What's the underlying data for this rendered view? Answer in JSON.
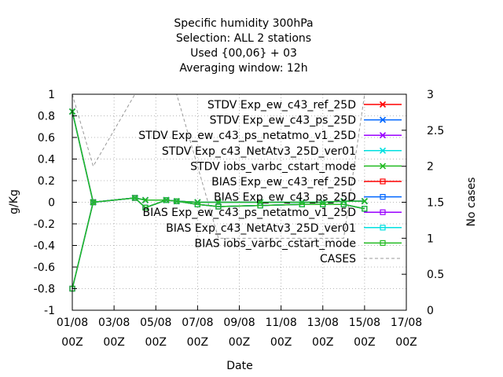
{
  "chart_data": {
    "type": "line",
    "title_lines": [
      "Specific humidity 300hPa",
      "Selection: ALL       2 stations",
      "Used {00,06} + 03",
      "Averaging window: 12h"
    ],
    "xlabel": "Date",
    "ylabel": "g/Kg",
    "y2label": "No cases",
    "ylim": [
      -1,
      1
    ],
    "y2lim": [
      0,
      3
    ],
    "xlim": [
      0,
      16
    ],
    "x_ticks": [
      {
        "x": 0,
        "line1": "01/08",
        "line2": "00Z"
      },
      {
        "x": 2,
        "line1": "03/08",
        "line2": "00Z"
      },
      {
        "x": 4,
        "line1": "05/08",
        "line2": "00Z"
      },
      {
        "x": 6,
        "line1": "07/08",
        "line2": "00Z"
      },
      {
        "x": 8,
        "line1": "09/08",
        "line2": "00Z"
      },
      {
        "x": 10,
        "line1": "11/08",
        "line2": "00Z"
      },
      {
        "x": 12,
        "line1": "13/08",
        "line2": "00Z"
      },
      {
        "x": 14,
        "line1": "15/08",
        "line2": "00Z"
      },
      {
        "x": 16,
        "line1": "17/08",
        "line2": "00Z"
      }
    ],
    "y_ticks": [
      "-1",
      "-0.8",
      "-0.6",
      "-0.4",
      "-0.2",
      "0",
      "0.2",
      "0.4",
      "0.6",
      "0.8",
      "1"
    ],
    "y_tick_values": [
      -1,
      -0.8,
      -0.6,
      -0.4,
      -0.2,
      0,
      0.2,
      0.4,
      0.6,
      0.8,
      1
    ],
    "y2_ticks": [
      "0",
      "0.5",
      "1",
      "1.5",
      "2",
      "2.5",
      "3"
    ],
    "y2_tick_values": [
      0,
      0.5,
      1,
      1.5,
      2,
      2.5,
      3
    ],
    "x": [
      0,
      1,
      3,
      3.5,
      4.5,
      5,
      6,
      7,
      9,
      11,
      12,
      13,
      14
    ],
    "series": [
      {
        "name": "STDV Exp_ew_c43_ref_25D",
        "color": "#ff0000",
        "marker": "x",
        "axis": "y",
        "values": [
          0.84,
          0.0,
          0.04,
          0.02,
          0.02,
          0.01,
          0.0,
          0.0,
          0.0,
          0.0,
          0.0,
          0.01,
          0.01
        ]
      },
      {
        "name": "STDV Exp_ew_c43_ps_25D",
        "color": "#0066ff",
        "marker": "x",
        "axis": "y",
        "values": [
          0.84,
          0.0,
          0.04,
          0.02,
          0.02,
          0.01,
          0.0,
          0.0,
          0.0,
          0.0,
          0.0,
          0.01,
          0.01
        ]
      },
      {
        "name": "STDV Exp_ew_c43_ps_netatmo_v1_25D",
        "color": "#9900ff",
        "marker": "x",
        "axis": "y",
        "values": [
          0.84,
          0.0,
          0.04,
          0.02,
          0.02,
          0.01,
          0.0,
          0.0,
          0.0,
          0.0,
          0.0,
          0.01,
          0.01
        ]
      },
      {
        "name": "STDV Exp_c43_NetAtv3_25D_ver01",
        "color": "#00e0e0",
        "marker": "x",
        "axis": "y",
        "values": [
          0.84,
          0.0,
          0.04,
          0.02,
          0.02,
          0.01,
          0.0,
          0.0,
          0.0,
          0.0,
          0.0,
          0.01,
          0.01
        ]
      },
      {
        "name": "STDV iobs_varbc_cstart_mode",
        "color": "#22bb22",
        "marker": "x",
        "axis": "y",
        "values": [
          0.84,
          0.0,
          0.04,
          0.02,
          0.02,
          0.01,
          0.0,
          0.0,
          0.0,
          0.0,
          0.0,
          0.01,
          0.01
        ]
      },
      {
        "name": "BIAS Exp_ew_c43_ref_25D",
        "color": "#ff0000",
        "marker": "square",
        "axis": "y",
        "values": [
          -0.8,
          0.0,
          0.04,
          -0.05,
          0.02,
          0.01,
          -0.02,
          -0.04,
          -0.03,
          -0.02,
          -0.02,
          -0.02,
          -0.06
        ]
      },
      {
        "name": "BIAS Exp_ew_c43_ps_25D",
        "color": "#0066ff",
        "marker": "square",
        "axis": "y",
        "values": [
          -0.8,
          0.0,
          0.04,
          -0.05,
          0.02,
          0.01,
          -0.02,
          -0.04,
          -0.03,
          -0.02,
          -0.02,
          -0.02,
          -0.06
        ]
      },
      {
        "name": "BIAS Exp_ew_c43_ps_netatmo_v1_25D",
        "color": "#9900ff",
        "marker": "square",
        "axis": "y",
        "values": [
          -0.8,
          0.0,
          0.04,
          -0.05,
          0.02,
          0.01,
          -0.02,
          -0.04,
          -0.03,
          -0.02,
          -0.02,
          -0.02,
          -0.06
        ]
      },
      {
        "name": "BIAS Exp_c43_NetAtv3_25D_ver01",
        "color": "#00e0e0",
        "marker": "square",
        "axis": "y",
        "values": [
          -0.8,
          0.0,
          0.04,
          -0.05,
          0.02,
          0.01,
          -0.02,
          -0.04,
          -0.03,
          -0.02,
          -0.02,
          -0.02,
          -0.06
        ]
      },
      {
        "name": "BIAS iobs_varbc_cstart_mode",
        "color": "#22bb22",
        "marker": "square",
        "axis": "y",
        "values": [
          -0.8,
          0.0,
          0.04,
          -0.05,
          0.02,
          0.01,
          -0.02,
          -0.04,
          -0.03,
          -0.02,
          -0.02,
          -0.02,
          -0.06
        ]
      }
    ],
    "cases": {
      "name": "CASES",
      "color": "#999999",
      "axis": "y2",
      "x": [
        0,
        1,
        3,
        4,
        5,
        6,
        7,
        8,
        9,
        10,
        11,
        12,
        13,
        14,
        15,
        16
      ],
      "values": [
        3,
        2,
        3,
        3,
        3,
        2,
        1,
        1,
        1,
        1,
        1,
        1,
        1,
        3,
        3,
        3
      ]
    },
    "grid": true,
    "legend_position": "top-right"
  }
}
